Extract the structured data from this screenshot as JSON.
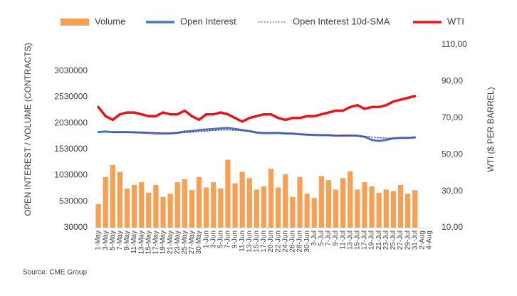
{
  "chart_data": {
    "type": "bar",
    "categories": [
      "1-May",
      "3-May",
      "5-May",
      "7-May",
      "9-May",
      "11-May",
      "13-May",
      "15-May",
      "17-May",
      "19-May",
      "21-May",
      "23-May",
      "25-May",
      "27-May",
      "30-May",
      "1-Jun",
      "3-Jun",
      "5-Jun",
      "7-Jun",
      "9-Jun",
      "11-Jun",
      "13-Jun",
      "15-Jun",
      "17-Jun",
      "20-Jun",
      "22-Jun",
      "24-Jun",
      "26-Jun",
      "28-Jun",
      "30-Jun",
      "3-Jul",
      "5-Jul",
      "7-Jul",
      "9-Jul",
      "11-Jul",
      "13-Jul",
      "15-Jul",
      "17-Jul",
      "19-Jul",
      "21-Jul",
      "23-Jul",
      "25-Jul",
      "27-Jul",
      "29-Jul",
      "31-Jul",
      "2-Aug",
      "4-Aug"
    ],
    "series": [
      {
        "name": "Volume",
        "type": "bar",
        "color": "#f5a055",
        "values": [
          480000,
          1000000,
          1230000,
          1100000,
          780000,
          850000,
          900000,
          700000,
          850000,
          620000,
          680000,
          900000,
          960000,
          750000,
          1000000,
          800000,
          900000,
          780000,
          1330000,
          880000,
          1100000,
          980000,
          760000,
          820000,
          1160000,
          800000,
          1050000,
          620000,
          1000000,
          680000,
          600000,
          1020000,
          940000,
          760000,
          980000,
          1110000,
          760000,
          900000,
          820000,
          700000,
          760000,
          730000,
          850000,
          680000,
          750000,
          null,
          null
        ]
      },
      {
        "name": "Open Interest",
        "type": "line",
        "color": "#4a78bc",
        "values": [
          1860000,
          1870000,
          1860000,
          1860000,
          1860000,
          1855000,
          1850000,
          1845000,
          1835000,
          1830000,
          1835000,
          1845000,
          1870000,
          1880000,
          1900000,
          1910000,
          1920000,
          1930000,
          1940000,
          1920000,
          1900000,
          1880000,
          1850000,
          1840000,
          1840000,
          1845000,
          1835000,
          1830000,
          1820000,
          1810000,
          1805000,
          1800000,
          1800000,
          1790000,
          1790000,
          1795000,
          1790000,
          1770000,
          1710000,
          1690000,
          1710000,
          1740000,
          1750000,
          1750000,
          1760000,
          null,
          null
        ]
      },
      {
        "name": "Open Interest 10d-SMA",
        "type": "line",
        "dash": true,
        "color": "#5b2a86",
        "values": [
          null,
          null,
          1850000,
          1855000,
          1858000,
          1857000,
          1855000,
          1852000,
          1848000,
          1844000,
          1842000,
          1845000,
          1852000,
          1860000,
          1870000,
          1880000,
          1890000,
          1898000,
          1900000,
          1895000,
          1885000,
          1870000,
          1860000,
          1852000,
          1845000,
          1838000,
          1832000,
          1828000,
          1822000,
          1815000,
          1810000,
          1805000,
          1800000,
          1796000,
          1792000,
          1790000,
          1786000,
          1778000,
          1765000,
          1752000,
          1745000,
          1742000,
          1742000,
          1744000,
          1748000,
          null,
          null
        ]
      },
      {
        "name": "WTI",
        "type": "line",
        "axis": "y2",
        "color": "#e8141c",
        "values": [
          76,
          71,
          69,
          72,
          73,
          73,
          72,
          71,
          71,
          73,
          72,
          72,
          74,
          71,
          69,
          72,
          72,
          73,
          72,
          70,
          68,
          70,
          71,
          72,
          72,
          70,
          69,
          70,
          70,
          71,
          71,
          72,
          73,
          74,
          74,
          76,
          77,
          75,
          76,
          76,
          77,
          79,
          80,
          81,
          82,
          null,
          null
        ]
      }
    ],
    "ylabel": "OPEN INTEREST / VOLUME (CONTRACTS)",
    "y2label": "WTI ($ PER BARREL)",
    "ylim": [
      30000,
      3530000
    ],
    "yticks": [
      30000,
      530000,
      1030000,
      1530000,
      2030000,
      2530000,
      3030000
    ],
    "y2lim": [
      10,
      110
    ],
    "y2ticks": [
      {
        "value": 10,
        "label": "10,00"
      },
      {
        "value": 30,
        "label": "30,00"
      },
      {
        "value": 50,
        "label": "50,00"
      },
      {
        "value": 70,
        "label": "70,00"
      },
      {
        "value": 90,
        "label": "90,00"
      },
      {
        "value": 110,
        "label": "110,00"
      }
    ],
    "legend": "top",
    "source": "Source: CME Group"
  }
}
